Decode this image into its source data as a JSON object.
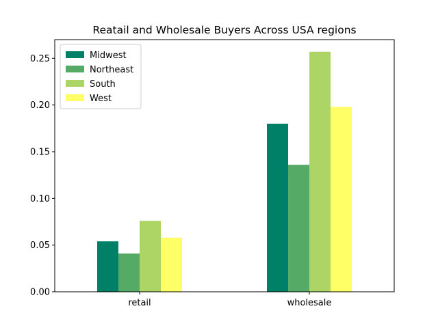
{
  "chart_data": {
    "type": "bar",
    "title": "Reatail and Wholesale Buyers Across USA regions",
    "xlabel": "",
    "ylabel": "",
    "categories": [
      "retail",
      "wholesale"
    ],
    "series": [
      {
        "name": "Midwest",
        "color": "#008066",
        "values": [
          0.054,
          0.18
        ]
      },
      {
        "name": "Northeast",
        "color": "#55aa66",
        "values": [
          0.041,
          0.136
        ]
      },
      {
        "name": "South",
        "color": "#acd566",
        "values": [
          0.076,
          0.257
        ]
      },
      {
        "name": "West",
        "color": "#ffff66",
        "values": [
          0.058,
          0.198
        ]
      }
    ],
    "ylim": [
      0,
      0.27
    ],
    "yticks": [
      "0.00",
      "0.05",
      "0.10",
      "0.15",
      "0.20",
      "0.25"
    ],
    "ytick_values": [
      0,
      0.05,
      0.1,
      0.15,
      0.2,
      0.25
    ],
    "legend_position": "top-left",
    "grid": false
  }
}
